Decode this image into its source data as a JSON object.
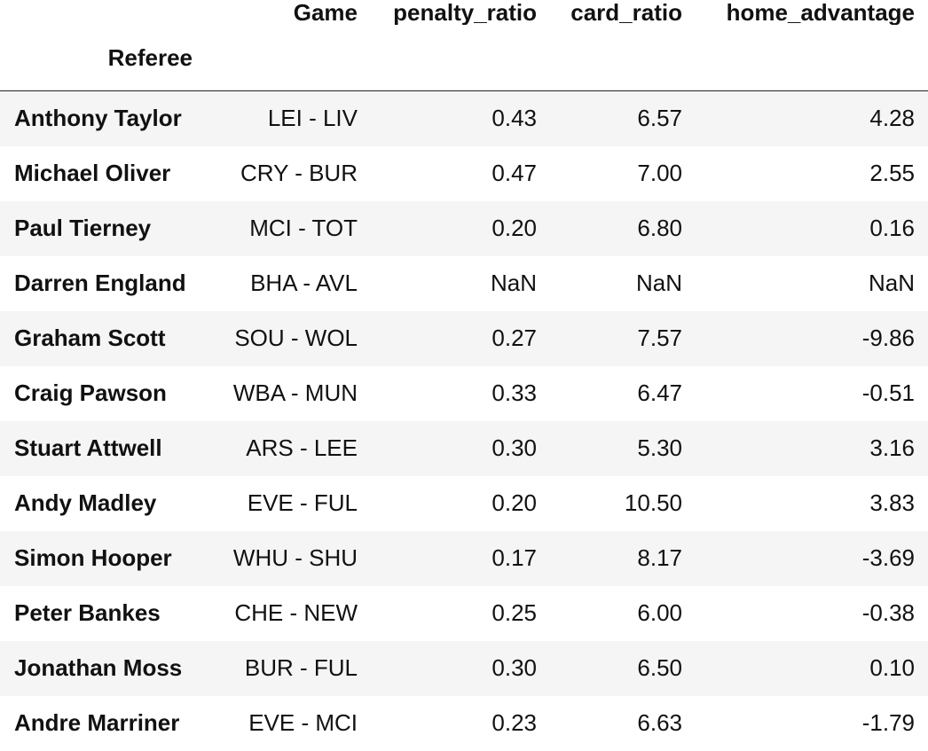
{
  "table": {
    "index_name": "Referee",
    "columns": [
      "Game",
      "penalty_ratio",
      "card_ratio",
      "home_advantage"
    ],
    "rows": [
      {
        "referee": "Anthony Taylor",
        "game": "LEI - LIV",
        "penalty_ratio": "0.43",
        "card_ratio": "6.57",
        "home_advantage": "4.28"
      },
      {
        "referee": "Michael Oliver",
        "game": "CRY - BUR",
        "penalty_ratio": "0.47",
        "card_ratio": "7.00",
        "home_advantage": "2.55"
      },
      {
        "referee": "Paul Tierney",
        "game": "MCI - TOT",
        "penalty_ratio": "0.20",
        "card_ratio": "6.80",
        "home_advantage": "0.16"
      },
      {
        "referee": "Darren England",
        "game": "BHA - AVL",
        "penalty_ratio": "NaN",
        "card_ratio": "NaN",
        "home_advantage": "NaN"
      },
      {
        "referee": "Graham Scott",
        "game": "SOU - WOL",
        "penalty_ratio": "0.27",
        "card_ratio": "7.57",
        "home_advantage": "-9.86"
      },
      {
        "referee": "Craig Pawson",
        "game": "WBA - MUN",
        "penalty_ratio": "0.33",
        "card_ratio": "6.47",
        "home_advantage": "-0.51"
      },
      {
        "referee": "Stuart Attwell",
        "game": "ARS - LEE",
        "penalty_ratio": "0.30",
        "card_ratio": "5.30",
        "home_advantage": "3.16"
      },
      {
        "referee": "Andy Madley",
        "game": "EVE - FUL",
        "penalty_ratio": "0.20",
        "card_ratio": "10.50",
        "home_advantage": "3.83"
      },
      {
        "referee": "Simon Hooper",
        "game": "WHU - SHU",
        "penalty_ratio": "0.17",
        "card_ratio": "8.17",
        "home_advantage": "-3.69"
      },
      {
        "referee": "Peter Bankes",
        "game": "CHE - NEW",
        "penalty_ratio": "0.25",
        "card_ratio": "6.00",
        "home_advantage": "-0.38"
      },
      {
        "referee": "Jonathan Moss",
        "game": "BUR - FUL",
        "penalty_ratio": "0.30",
        "card_ratio": "6.50",
        "home_advantage": "0.10"
      },
      {
        "referee": "Andre Marriner",
        "game": "EVE - MCI",
        "penalty_ratio": "0.23",
        "card_ratio": "6.63",
        "home_advantage": "-1.79"
      }
    ]
  },
  "colors": {
    "striped_row": "#f5f5f5",
    "text": "#111111",
    "header_rule": "#222222"
  }
}
